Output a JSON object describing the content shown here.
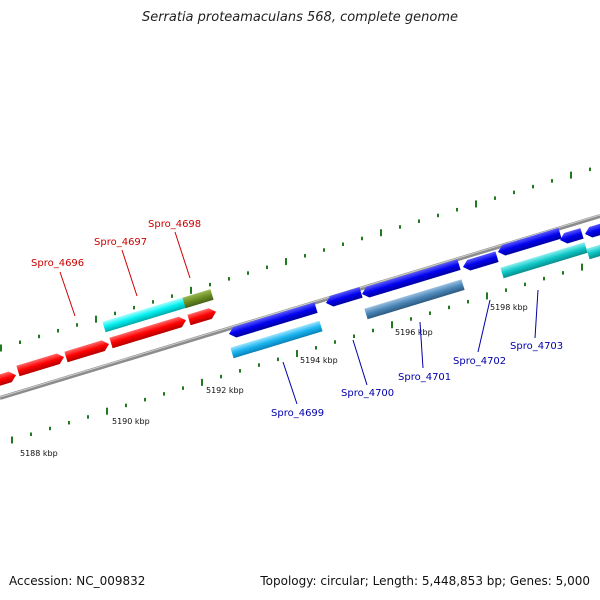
{
  "title": "Serratia proteamaculans 568, complete genome",
  "footer": {
    "accession": "Accession: NC_009832",
    "summary": "Topology: circular; Length: 5,448,853 bp; Genes: 5,000"
  },
  "colors": {
    "backbone": "#8c8c8c",
    "tick": "#1f7a1f",
    "forward_label": "#cc0000",
    "reverse_label": "#0000aa"
  },
  "tick_labels": [
    "5188 kbp",
    "5190 kbp",
    "5192 kbp",
    "5194 kbp",
    "5196 kbp",
    "5198 kbp"
  ],
  "genes": [
    {
      "label": "Spro_4696",
      "strand": "forward"
    },
    {
      "label": "Spro_4697",
      "strand": "forward"
    },
    {
      "label": "Spro_4698",
      "strand": "forward"
    },
    {
      "label": "Spro_4699",
      "strand": "reverse"
    },
    {
      "label": "Spro_4700",
      "strand": "reverse"
    },
    {
      "label": "Spro_4701",
      "strand": "reverse"
    },
    {
      "label": "Spro_4702",
      "strand": "reverse"
    },
    {
      "label": "Spro_4703",
      "strand": "reverse"
    }
  ]
}
